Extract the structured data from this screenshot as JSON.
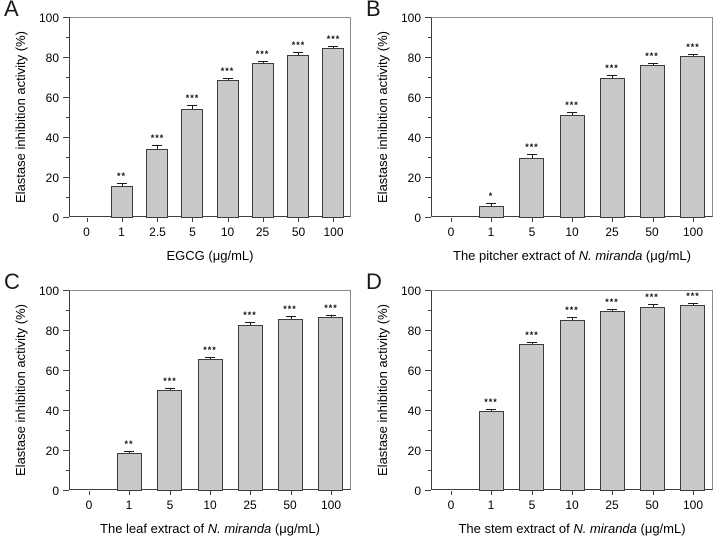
{
  "figure": {
    "background": "#ffffff",
    "colors": {
      "bar_fill": "#c9c9c9",
      "bar_border": "#3c3c3c",
      "frame": "#8a8a8a",
      "axis": "#404040",
      "error_bar": "#1a1a1a",
      "text": "#000000"
    }
  },
  "chart_data": [
    {
      "type": "bar",
      "panel_label": "A",
      "ylabel": "Elastase inhibition activity (%)",
      "xlabel": "EGCG (μg/mL)",
      "xlabel_parts": [
        {
          "text": "EGCG (μg/mL)",
          "italic": false
        }
      ],
      "categories": [
        "0",
        "1",
        "2.5",
        "5",
        "10",
        "25",
        "50",
        "100"
      ],
      "values": [
        0,
        15.5,
        34,
        54,
        68.5,
        77,
        81,
        84.5
      ],
      "errors": [
        0,
        1.5,
        2,
        1.8,
        1,
        0.7,
        1.7,
        1
      ],
      "significance": [
        "",
        "**",
        "***",
        "***",
        "***",
        "***",
        "***",
        "***"
      ],
      "ylim": [
        0,
        100
      ],
      "yticks": [
        0,
        20,
        40,
        60,
        80,
        100
      ],
      "yticks_minor": [
        10,
        30,
        50,
        70,
        90
      ],
      "grid": false,
      "legend": null
    },
    {
      "type": "bar",
      "panel_label": "B",
      "ylabel": "Elastase inhibition activity (%)",
      "xlabel": "The pitcher extract of N. miranda (μg/mL)",
      "xlabel_parts": [
        {
          "text": "The pitcher extract of ",
          "italic": false
        },
        {
          "text": "N. miranda",
          "italic": true
        },
        {
          "text": " (μg/mL)",
          "italic": false
        }
      ],
      "categories": [
        "0",
        "1",
        "5",
        "10",
        "25",
        "50",
        "100"
      ],
      "values": [
        0,
        5.5,
        29.5,
        51,
        69.5,
        76,
        80.5
      ],
      "errors": [
        0,
        1.3,
        1.8,
        1.3,
        1.7,
        0.8,
        0.6
      ],
      "significance": [
        "",
        "*",
        "***",
        "***",
        "***",
        "***",
        "***"
      ],
      "ylim": [
        0,
        100
      ],
      "yticks": [
        0,
        20,
        40,
        60,
        80,
        100
      ],
      "yticks_minor": [
        10,
        30,
        50,
        70,
        90
      ],
      "grid": false,
      "legend": null
    },
    {
      "type": "bar",
      "panel_label": "C",
      "ylabel": "Elastase inhibition activity (%)",
      "xlabel": "The leaf extract of N. miranda (μg/mL)",
      "xlabel_parts": [
        {
          "text": "The leaf extract of ",
          "italic": false
        },
        {
          "text": "N. miranda",
          "italic": true
        },
        {
          "text": " (μg/mL)",
          "italic": false
        }
      ],
      "categories": [
        "0",
        "1",
        "5",
        "10",
        "25",
        "50",
        "100"
      ],
      "values": [
        0,
        18.5,
        50,
        65.5,
        82.5,
        85.5,
        86.5
      ],
      "errors": [
        0,
        1,
        1,
        1,
        1.5,
        1.3,
        0.6
      ],
      "significance": [
        "",
        "**",
        "***",
        "***",
        "***",
        "***",
        "***"
      ],
      "ylim": [
        0,
        100
      ],
      "yticks": [
        0,
        20,
        40,
        60,
        80,
        100
      ],
      "yticks_minor": [
        10,
        30,
        50,
        70,
        90
      ],
      "grid": false,
      "legend": null
    },
    {
      "type": "bar",
      "panel_label": "D",
      "ylabel": "Elastase inhibition activity (%)",
      "xlabel": "The stem extract of N. miranda (μg/mL)",
      "xlabel_parts": [
        {
          "text": "The stem extract of ",
          "italic": false
        },
        {
          "text": "N. miranda",
          "italic": true
        },
        {
          "text": " (μg/mL)",
          "italic": false
        }
      ],
      "categories": [
        "0",
        "1",
        "5",
        "10",
        "25",
        "50",
        "100"
      ],
      "values": [
        0,
        39.5,
        73,
        85,
        89.5,
        91.5,
        92.5
      ],
      "errors": [
        0,
        1,
        0.8,
        1.7,
        0.5,
        1.5,
        0.9
      ],
      "significance": [
        "",
        "***",
        "***",
        "***",
        "***",
        "***",
        "***"
      ],
      "ylim": [
        0,
        100
      ],
      "yticks": [
        0,
        20,
        40,
        60,
        80,
        100
      ],
      "yticks_minor": [
        10,
        30,
        50,
        70,
        90
      ],
      "grid": false,
      "legend": null
    }
  ]
}
